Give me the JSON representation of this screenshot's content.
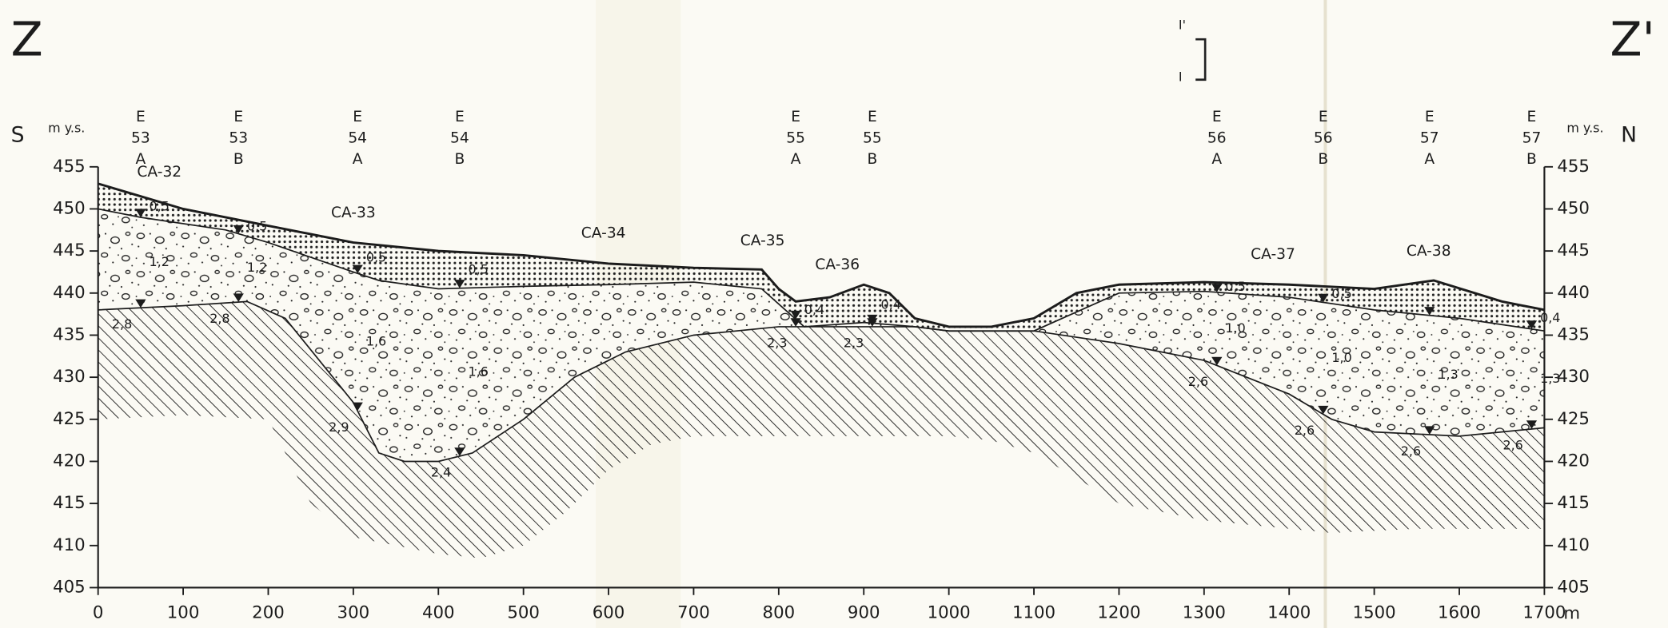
{
  "chart_data": {
    "type": "profile",
    "left_mark": "Z",
    "right_mark": "Z'",
    "left_direction": "S",
    "right_direction": "N",
    "y_unit": "m y.s.",
    "x_unit": "m",
    "scale_top": "I'",
    "scale_bottom": "I",
    "xlim": [
      0,
      1700
    ],
    "ylim": [
      405,
      455
    ],
    "xticks": [
      0,
      100,
      200,
      300,
      400,
      500,
      600,
      700,
      800,
      900,
      1000,
      1100,
      1200,
      1300,
      1400,
      1500,
      1600,
      1700
    ],
    "yticks": [
      405,
      410,
      415,
      420,
      425,
      430,
      435,
      440,
      445,
      450,
      455
    ],
    "surface": {
      "x": [
        0,
        50,
        100,
        200,
        300,
        400,
        500,
        600,
        700,
        780,
        800,
        820,
        860,
        900,
        930,
        960,
        1000,
        1050,
        1100,
        1150,
        1200,
        1300,
        1400,
        1500,
        1570,
        1650,
        1700
      ],
      "values": [
        453,
        451.5,
        450,
        448,
        446,
        445,
        444.5,
        443.5,
        443,
        442.8,
        440.5,
        439,
        439.5,
        441,
        440,
        437,
        436,
        436,
        437,
        440,
        441,
        441.3,
        441,
        440.5,
        441.5,
        439,
        438
      ]
    },
    "soil_base": {
      "x": [
        0,
        50,
        150,
        200,
        300,
        330,
        400,
        500,
        600,
        700,
        780,
        830,
        900,
        960,
        1000,
        1100,
        1200,
        1300,
        1400,
        1500,
        1600,
        1700
      ],
      "values": [
        450,
        449,
        447.5,
        446,
        442.5,
        441.5,
        440.5,
        440.8,
        441,
        441.3,
        440.5,
        436,
        436.5,
        436,
        435.5,
        435.5,
        440,
        440.2,
        439.5,
        438,
        437,
        435.5
      ]
    },
    "gravel_base": {
      "x": [
        0,
        100,
        175,
        220,
        300,
        330,
        360,
        400,
        440,
        500,
        560,
        620,
        700,
        800,
        900,
        960,
        1000,
        1100,
        1200,
        1300,
        1400,
        1450,
        1500,
        1600,
        1700
      ],
      "values": [
        438,
        438.5,
        439,
        437,
        427,
        421,
        420,
        420,
        421,
        425,
        430,
        433,
        435,
        436,
        436,
        436,
        435.5,
        435.5,
        434,
        432,
        428,
        425,
        423.5,
        423,
        424
      ]
    },
    "bedrock_bottom": {
      "x": [
        0,
        100,
        200,
        250,
        300,
        400,
        450,
        500,
        550,
        600,
        650,
        700,
        1000,
        1050,
        1100,
        1200,
        1300,
        1400,
        1450,
        1550,
        1700
      ],
      "values": [
        425,
        425.5,
        425,
        415,
        411,
        409,
        408.5,
        410,
        414,
        419,
        422,
        423,
        423,
        422.5,
        421,
        415,
        413,
        412,
        411.5,
        412,
        412
      ]
    },
    "sections": [
      {
        "name": "CA-32",
        "x": 72
      },
      {
        "name": "CA-33",
        "x": 300
      },
      {
        "name": "CA-34",
        "x": 594
      },
      {
        "name": "CA-35",
        "x": 781
      },
      {
        "name": "CA-36",
        "x": 869
      },
      {
        "name": "CA-37",
        "x": 1381
      },
      {
        "name": "CA-38",
        "x": 1564
      }
    ],
    "wells": [
      {
        "code": "E",
        "number": "53",
        "letter": "A",
        "x": 50,
        "labels": [
          "0,5",
          "1,2",
          "2,8"
        ]
      },
      {
        "code": "E",
        "number": "53",
        "letter": "B",
        "x": 165,
        "labels": [
          "0,5",
          "1,2",
          "2,8"
        ]
      },
      {
        "code": "E",
        "number": "54",
        "letter": "A",
        "x": 305,
        "labels": [
          "0,5",
          "1,6",
          "2,9"
        ]
      },
      {
        "code": "E",
        "number": "54",
        "letter": "B",
        "x": 425,
        "labels": [
          "0,5",
          "1,6",
          "2,4"
        ]
      },
      {
        "code": "E",
        "number": "55",
        "letter": "A",
        "x": 820,
        "labels": [
          "0,4",
          null,
          "2,3"
        ]
      },
      {
        "code": "E",
        "number": "55",
        "letter": "B",
        "x": 910,
        "labels": [
          "0,4",
          null,
          "2,3"
        ]
      },
      {
        "code": "E",
        "number": "56",
        "letter": "A",
        "x": 1315,
        "labels": [
          "0,5",
          "1,0",
          "2,6"
        ]
      },
      {
        "code": "E",
        "number": "56",
        "letter": "B",
        "x": 1440,
        "labels": [
          "0,5",
          "1,0",
          "2,6"
        ]
      },
      {
        "code": "E",
        "number": "57",
        "letter": "A",
        "x": 1565,
        "labels": [
          null,
          "1,3",
          "2,6"
        ]
      },
      {
        "code": "E",
        "number": "57",
        "letter": "B",
        "x": 1685,
        "labels": [
          "0,4",
          "1,3",
          "2,6"
        ]
      }
    ]
  }
}
